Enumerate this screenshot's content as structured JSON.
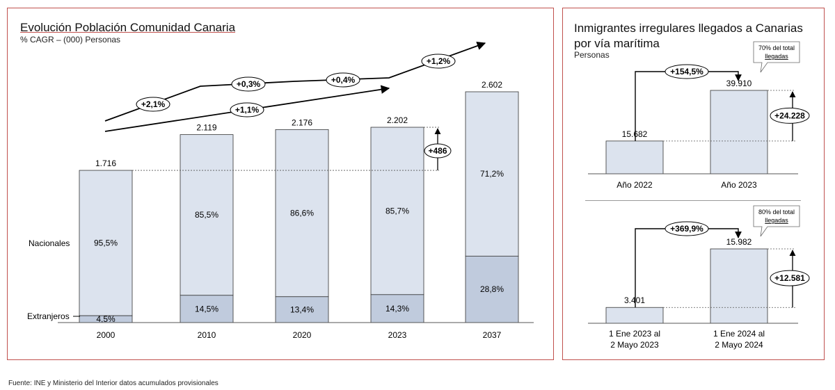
{
  "left": {
    "title": "Evolución Población Comunidad Canaria",
    "subtitle": "% CAGR – (000) Personas",
    "diff_label": "+486"
  },
  "right": {
    "title": "Inmigrantes irregulares llegados a Canarias por vía marítima",
    "subtitle": "Personas"
  },
  "source": "Fuente: INE y Ministerio del Interior datos acumulados provisionales",
  "colors": {
    "light_bar": "#dce3ee",
    "dark_bar": "#c0cbdd",
    "border": "#c0504d"
  },
  "chart_data": [
    {
      "type": "bar",
      "title": "Evolución Población Comunidad Canaria",
      "subtitle": "% CAGR – (000) Personas",
      "categories": [
        "2000",
        "2010",
        "2020",
        "2023",
        "2037"
      ],
      "totals": [
        1716,
        2119,
        2176,
        2202,
        2602
      ],
      "total_labels": [
        "1.716",
        "2.119",
        "2.176",
        "2.202",
        "2.602"
      ],
      "series": [
        {
          "name": "Extranjeros",
          "values": [
            4.5,
            14.5,
            13.4,
            14.3,
            28.8
          ],
          "labels": [
            "4,5%",
            "14,5%",
            "13,4%",
            "14,3%",
            "28,8%"
          ]
        },
        {
          "name": "Nacionales",
          "values": [
            95.5,
            85.5,
            86.6,
            85.7,
            71.2
          ],
          "labels": [
            "95,5%",
            "85,5%",
            "86,6%",
            "85,7%",
            "71,2%"
          ]
        }
      ],
      "cagr_labels": [
        "+2,1%",
        "+0,3%",
        "+0,4%",
        "+1,2%"
      ],
      "cagr_overall": "+1,1%",
      "difference": "+486"
    },
    {
      "type": "bar",
      "categories": [
        "Año 2022",
        "Año 2023"
      ],
      "values": [
        15682,
        39910
      ],
      "value_labels": [
        "15.682",
        "39.910"
      ],
      "growth": "+154,5%",
      "difference": "+24.228",
      "note": [
        "70% del total",
        "llegadas"
      ]
    },
    {
      "type": "bar",
      "categories": [
        [
          "1 Ene 2023 al",
          "2 Mayo 2023"
        ],
        [
          "1 Ene 2024 al",
          "2 Mayo 2024"
        ]
      ],
      "values": [
        3401,
        15982
      ],
      "value_labels": [
        "3.401",
        "15.982"
      ],
      "growth": "+369,9%",
      "difference": "+12.581",
      "note": [
        "80% del total",
        "llegadas"
      ]
    }
  ]
}
